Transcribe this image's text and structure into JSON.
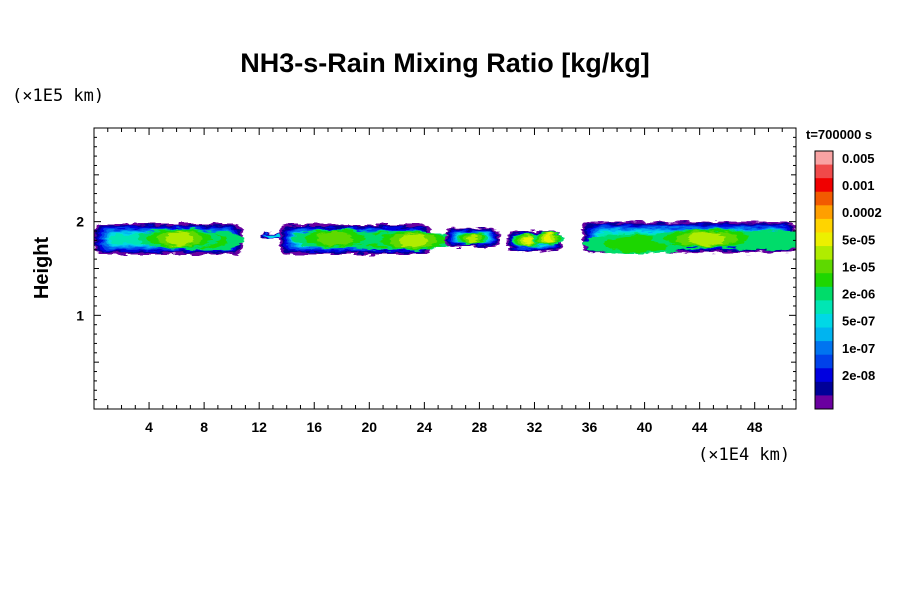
{
  "chart_data": {
    "type": "heatmap",
    "title": "NH3-s-Rain Mixing Ratio [kg/kg]",
    "xlabel": "",
    "ylabel": "Height",
    "x_unit": "(×1E4 km)",
    "y_unit": "(×1E5 km)",
    "xlim": [
      0,
      51
    ],
    "ylim": [
      0,
      3
    ],
    "x_ticks": [
      4,
      8,
      12,
      16,
      20,
      24,
      28,
      32,
      36,
      40,
      44,
      48
    ],
    "y_ticks": [
      1,
      2
    ],
    "time_label": "t=700000 s",
    "colorbar": {
      "labels": [
        "0.005",
        "0.001",
        "0.0002",
        "5e-05",
        "1e-05",
        "2e-06",
        "5e-07",
        "1e-07",
        "2e-08"
      ],
      "colors": [
        "#f9a3a3",
        "#f04a4a",
        "#f00000",
        "#f25a00",
        "#ff9f00",
        "#ffd400",
        "#ecf000",
        "#b0ec00",
        "#5ed900",
        "#1ed600",
        "#00dc6a",
        "#00e6b4",
        "#00d8e6",
        "#00b4f0",
        "#0074f0",
        "#0042ea",
        "#0000e0",
        "#000098",
        "#6a00a0"
      ]
    },
    "clouds": [
      {
        "x0": 0.0,
        "x1": 10.8,
        "y0": 1.65,
        "y1": 1.98,
        "cores": [
          {
            "x": 3.8,
            "y": 1.82,
            "level": 14
          },
          {
            "x": 7.9,
            "y": 1.8,
            "level": 9
          },
          {
            "x": 6.2,
            "y": 1.82,
            "level": 7
          }
        ]
      },
      {
        "x0": 12.2,
        "x1": 13.8,
        "y0": 1.82,
        "y1": 1.88,
        "cores": []
      },
      {
        "x0": 13.5,
        "x1": 24.5,
        "y0": 1.65,
        "y1": 1.97,
        "cores": [
          {
            "x": 21.2,
            "y": 1.8,
            "level": 9
          },
          {
            "x": 17.5,
            "y": 1.82,
            "level": 8
          },
          {
            "x": 23.2,
            "y": 1.8,
            "level": 7
          }
        ]
      },
      {
        "x0": 25.5,
        "x1": 29.5,
        "y0": 1.73,
        "y1": 1.93,
        "cores": [
          {
            "x": 27.5,
            "y": 1.82,
            "level": 7
          }
        ]
      },
      {
        "x0": 30.0,
        "x1": 34.0,
        "y0": 1.68,
        "y1": 1.9,
        "cores": [
          {
            "x": 31.5,
            "y": 1.8,
            "level": 6
          },
          {
            "x": 33.0,
            "y": 1.82,
            "level": 6
          }
        ]
      },
      {
        "x0": 35.5,
        "x1": 51.0,
        "y0": 1.67,
        "y1": 2.0,
        "cores": [
          {
            "x": 39.5,
            "y": 1.76,
            "level": 9
          },
          {
            "x": 48.8,
            "y": 1.8,
            "level": 10
          },
          {
            "x": 44.5,
            "y": 1.82,
            "level": 7
          }
        ]
      }
    ]
  }
}
